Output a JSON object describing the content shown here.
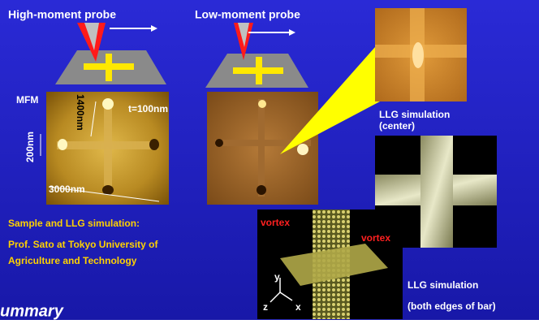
{
  "probes": [
    {
      "label": "High-moment probe"
    },
    {
      "label": "Low-moment probe"
    }
  ],
  "mfm": {
    "label": "MFM",
    "length": "1400nm",
    "thickness": "t=100nm",
    "width": "200nm",
    "span": "3000nm"
  },
  "center_sim": {
    "label": "LLG simulation",
    "sublabel": "(center)"
  },
  "edge_sim": {
    "vortex_left": "vortex",
    "vortex_right": "vortex",
    "axes": {
      "y": "y",
      "z": "z",
      "x": "x"
    },
    "label": "LLG simulation",
    "sublabel": "(both edges of bar)"
  },
  "credits": {
    "heading": "Sample and LLG simulation:",
    "line1": "Prof. Sato at Tokyo University of",
    "line2": "Agriculture and Technology"
  },
  "footer": {
    "title": "ummary"
  }
}
